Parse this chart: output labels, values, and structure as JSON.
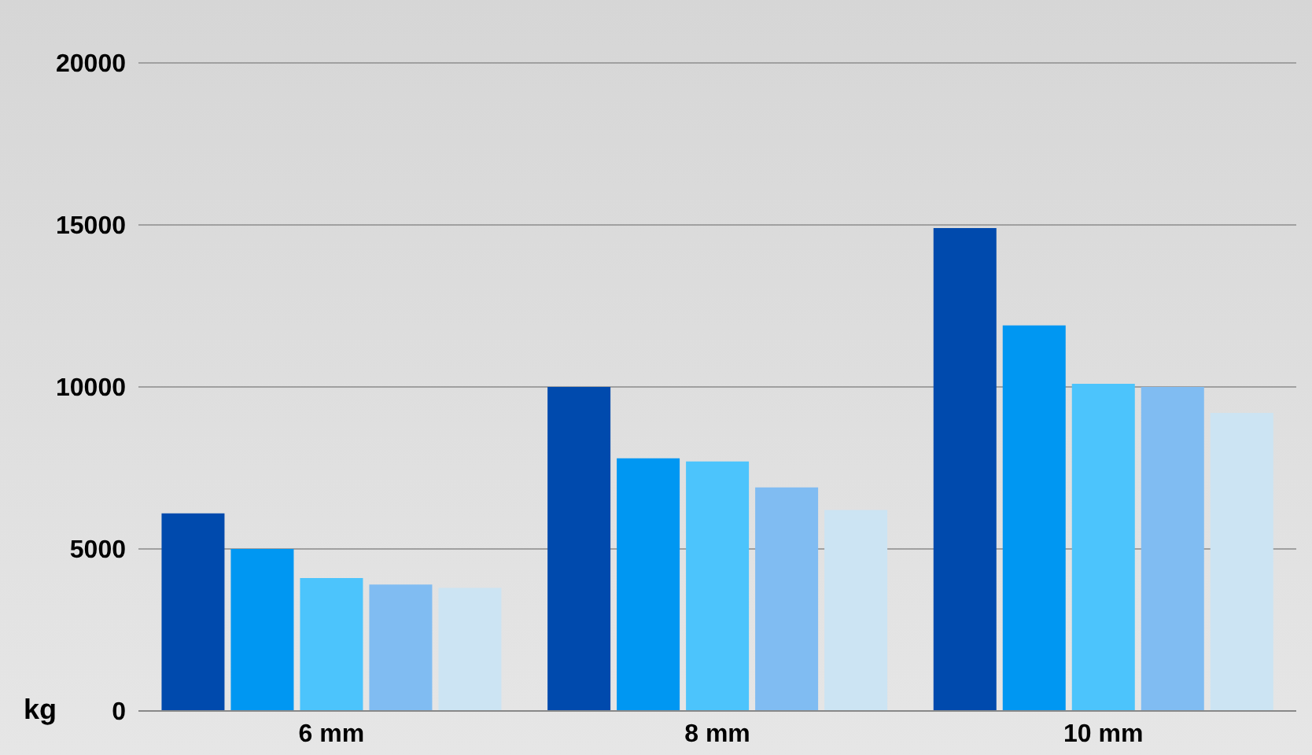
{
  "chart_data": {
    "type": "bar",
    "ylabel": "kg",
    "categories": [
      "6 mm",
      "8 mm",
      "10 mm"
    ],
    "series": [
      {
        "color": "#004aad",
        "values": [
          6100,
          10000,
          14900
        ]
      },
      {
        "color": "#0097f2",
        "values": [
          5000,
          7800,
          11900
        ]
      },
      {
        "color": "#4cc4fc",
        "values": [
          4100,
          7700,
          10100
        ]
      },
      {
        "color": "#80bcf2",
        "values": [
          3900,
          6900,
          10000
        ]
      },
      {
        "color": "#cce4f3",
        "values": [
          3800,
          6200,
          9200
        ]
      }
    ],
    "ylim": [
      0,
      20000
    ],
    "yticks": [
      0,
      5000,
      10000,
      15000,
      20000
    ],
    "grid": "y"
  }
}
